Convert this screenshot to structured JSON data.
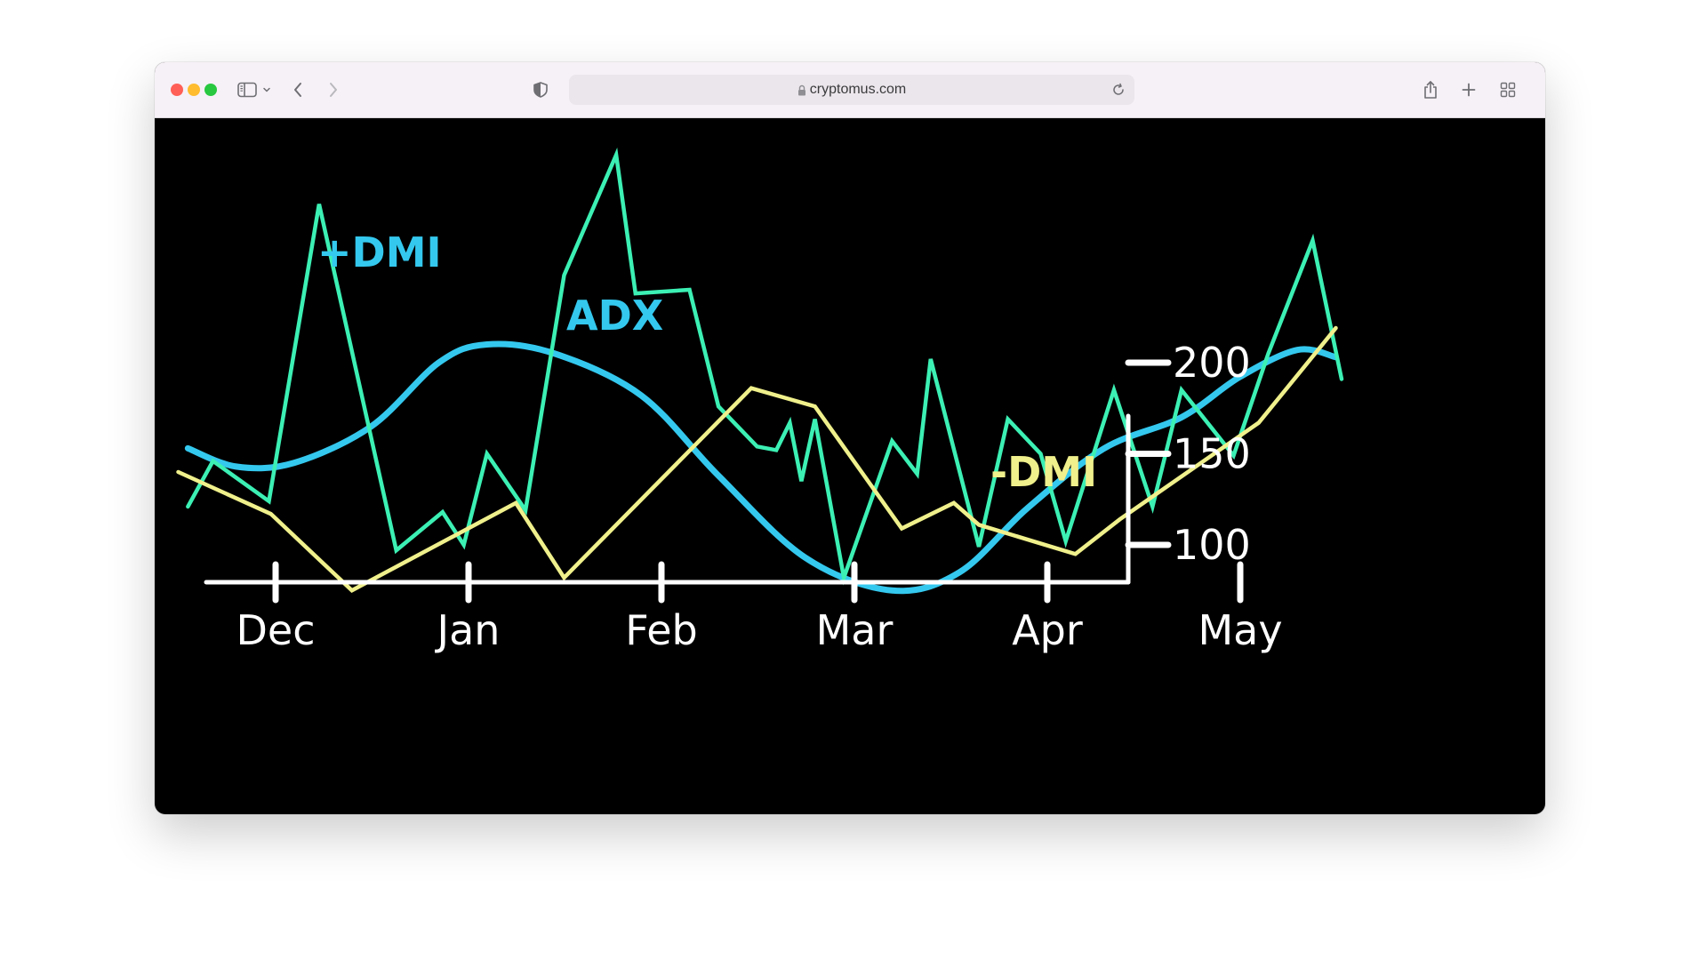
{
  "browser": {
    "url": "cryptomus.com",
    "icons": {
      "close": "close-dot",
      "minimize": "minimize-dot",
      "zoom": "zoom-dot",
      "sidebar": "sidebar-icon",
      "sidebar_menu": "chevron-down-icon",
      "back": "chevron-left-icon",
      "forward": "chevron-right-icon",
      "privacy": "shield-icon",
      "lock": "lock-icon",
      "reload": "reload-icon",
      "share": "share-icon",
      "new_tab": "plus-icon",
      "tabs": "tab-overview-icon"
    },
    "colors": {
      "close": "#ff5f57",
      "minimize": "#febc2e",
      "zoom": "#28c840"
    }
  },
  "chart_data": {
    "type": "line",
    "background": "#000000",
    "categories": [
      "Dec",
      "Jan",
      "Feb",
      "Mar",
      "Apr",
      "May"
    ],
    "ylim": [
      60,
      240
    ],
    "yticks": [
      100,
      150,
      200
    ],
    "ytick_labels": [
      "100",
      "150",
      "200"
    ],
    "grid": false,
    "series": [
      {
        "name": "+DMI",
        "color": "#34c8ee",
        "smooth": true,
        "x": [
          -0.45,
          -0.2,
          0.1,
          0.5,
          0.85,
          1.1,
          1.45,
          1.9,
          2.3,
          2.75,
          3.2,
          3.55,
          3.9,
          4.3,
          4.7,
          5.0,
          5.3,
          5.5
        ],
        "values": [
          153,
          143,
          145,
          165,
          200,
          210,
          205,
          182,
          138,
          93,
          75,
          85,
          120,
          153,
          170,
          192,
          207,
          203
        ]
      },
      {
        "name": "ADX",
        "color": "#3cf0b4",
        "x": [
          -0.45,
          -0.32,
          -0.03,
          0.23,
          0.63,
          0.87,
          0.98,
          1.1,
          1.3,
          1.5,
          1.77,
          1.87,
          2.15,
          2.3,
          2.5,
          2.6,
          2.67,
          2.73,
          2.8,
          2.95,
          3.2,
          3.33,
          3.4,
          3.65,
          3.8,
          3.97,
          4.1,
          4.35,
          4.55,
          4.7,
          4.97,
          5.15,
          5.38,
          5.53
        ],
        "values": [
          121,
          146,
          124,
          287,
          97,
          118,
          100,
          150,
          119,
          248,
          314,
          238,
          240,
          176,
          154,
          152,
          167,
          135,
          169,
          82,
          157,
          139,
          202,
          99,
          169,
          150,
          102,
          185,
          121,
          185,
          149,
          205,
          267,
          191
        ]
      },
      {
        "name": "-DMI",
        "color": "#f0f08c",
        "x": [
          -0.5,
          -0.02,
          0.4,
          1.25,
          1.5,
          2.47,
          2.8,
          3.25,
          3.52,
          3.65,
          4.15,
          4.38,
          5.1,
          5.5
        ],
        "values": [
          140,
          117,
          75,
          123,
          82,
          186,
          176,
          109,
          123,
          111,
          95,
          114,
          167,
          219
        ]
      }
    ],
    "labels": [
      {
        "text": "+DMI",
        "series": "+DMI",
        "color": "#34c8ee"
      },
      {
        "text": "ADX",
        "series": "ADX",
        "color": "#34c8ee"
      },
      {
        "text": "-DMI",
        "series": "-DMI",
        "color": "#f0f08c"
      }
    ]
  }
}
